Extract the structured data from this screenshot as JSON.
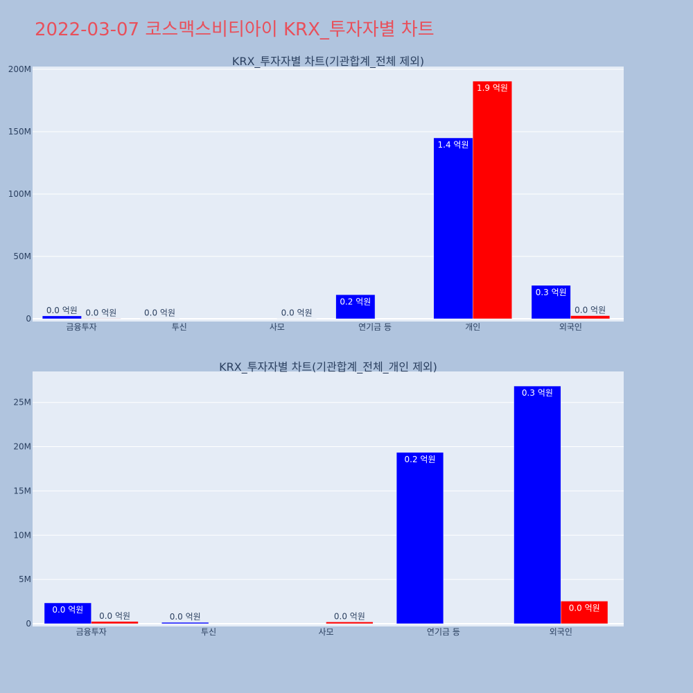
{
  "page": {
    "title": "2022-03-07 코스맥스비티아이 KRX_투자자별 차트"
  },
  "colors": {
    "buy": "#0000ff",
    "sell": "#ff0000",
    "plot_bg": "#e5ecf6",
    "page_bg": "#b0c4de",
    "title": "#e8505b"
  },
  "chart_data": [
    {
      "type": "bar",
      "title": "KRX_투자자별 차트(기관합계_전체 제외)",
      "categories": [
        "금융투자",
        "투신",
        "사모",
        "연기금 등",
        "개인",
        "외국인"
      ],
      "ylim": [
        0,
        200000000
      ],
      "yticks": [
        0,
        50000000,
        100000000,
        150000000,
        200000000
      ],
      "ytick_labels": [
        "0",
        "50M",
        "100M",
        "150M",
        "200M"
      ],
      "grid": true,
      "series": [
        {
          "color": "#0000ff",
          "values": [
            2300000,
            200000,
            0,
            19300000,
            145000000,
            26800000
          ],
          "labels": [
            "0.0 억원",
            "0.0 억원",
            "",
            "0.2 억원",
            "1.4 억원",
            "0.3 억원"
          ]
        },
        {
          "color": "#ff0000",
          "values": [
            300000,
            0,
            200000,
            0,
            190500000,
            2500000
          ],
          "labels": [
            "0.0 억원",
            "",
            "0.0 억원",
            "",
            "1.9 억원",
            "0.0 억원"
          ]
        }
      ]
    },
    {
      "type": "bar",
      "title": "KRX_투자자별 차트(기관합계_전체_개인 제외)",
      "categories": [
        "금융투자",
        "투신",
        "사모",
        "연기금 등",
        "외국인"
      ],
      "ylim": [
        0,
        28500000
      ],
      "yticks": [
        0,
        5000000,
        10000000,
        15000000,
        20000000,
        25000000
      ],
      "ytick_labels": [
        "0",
        "5M",
        "10M",
        "15M",
        "20M",
        "25M"
      ],
      "grid": true,
      "series": [
        {
          "color": "#0000ff",
          "values": [
            2350000,
            150000,
            0,
            19350000,
            26850000
          ],
          "labels": [
            "0.0 억원",
            "0.0 억원",
            "",
            "0.2 억원",
            "0.3 억원"
          ]
        },
        {
          "color": "#ff0000",
          "values": [
            250000,
            0,
            200000,
            0,
            2550000
          ],
          "labels": [
            "0.0 억원",
            "",
            "0.0 억원",
            "",
            "0.0 억원"
          ]
        }
      ]
    }
  ]
}
